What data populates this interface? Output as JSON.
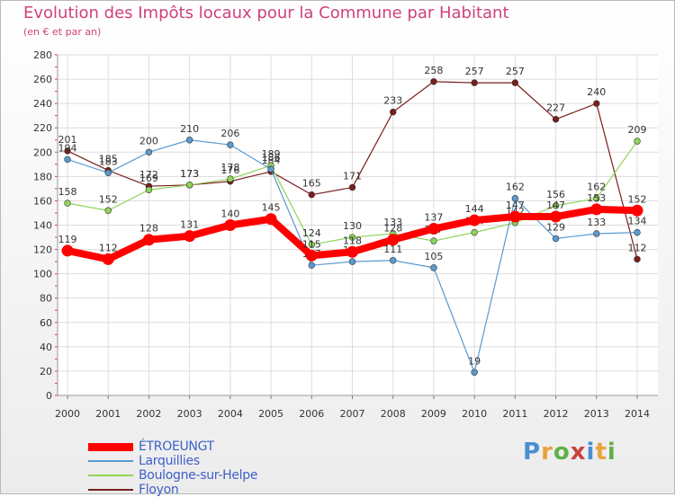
{
  "brand": {
    "text": "Proxiti",
    "colors": [
      "#4a8fd1",
      "#e8a33c",
      "#62b048",
      "#c9413c",
      "#4a8fd1",
      "#e8a33c",
      "#62b048"
    ]
  },
  "chart_data": {
    "type": "line",
    "title": "Evolution des Impôts locaux pour la Commune par Habitant",
    "subtitle": "(en € et par an)",
    "xlabel": "",
    "ylabel": "",
    "ylim": [
      0,
      280
    ],
    "yticks": [
      0,
      20,
      40,
      60,
      80,
      100,
      120,
      140,
      160,
      180,
      200,
      220,
      240,
      260,
      280
    ],
    "grid": true,
    "legend_position": "bottom-left",
    "categories": [
      "2000",
      "2001",
      "2002",
      "2003",
      "2004",
      "2005",
      "2006",
      "2007",
      "2008",
      "2009",
      "2010",
      "2011",
      "2012",
      "2013",
      "2014"
    ],
    "series": [
      {
        "name": "Floyon",
        "color": "#7a1e1e",
        "values": [
          201,
          185,
          172,
          173,
          176,
          184,
          165,
          171,
          233,
          258,
          257,
          257,
          227,
          240,
          112
        ]
      },
      {
        "name": "Boulogne-sur-Helpe",
        "color": "#8fd45a",
        "values": [
          158,
          152,
          169,
          173,
          178,
          189,
          124,
          130,
          133,
          127,
          134,
          142,
          156,
          162,
          209
        ]
      },
      {
        "name": "Larquillies",
        "color": "#5a9ad0",
        "values": [
          194,
          183,
          200,
          210,
          206,
          186,
          107,
          110,
          111,
          105,
          19,
          162,
          129,
          133,
          134
        ]
      },
      {
        "name": "ÉTROEUNGT",
        "color": "#ff0000",
        "values": [
          119,
          112,
          128,
          131,
          140,
          145,
          115,
          118,
          128,
          137,
          144,
          147,
          147,
          153,
          152
        ]
      }
    ]
  }
}
